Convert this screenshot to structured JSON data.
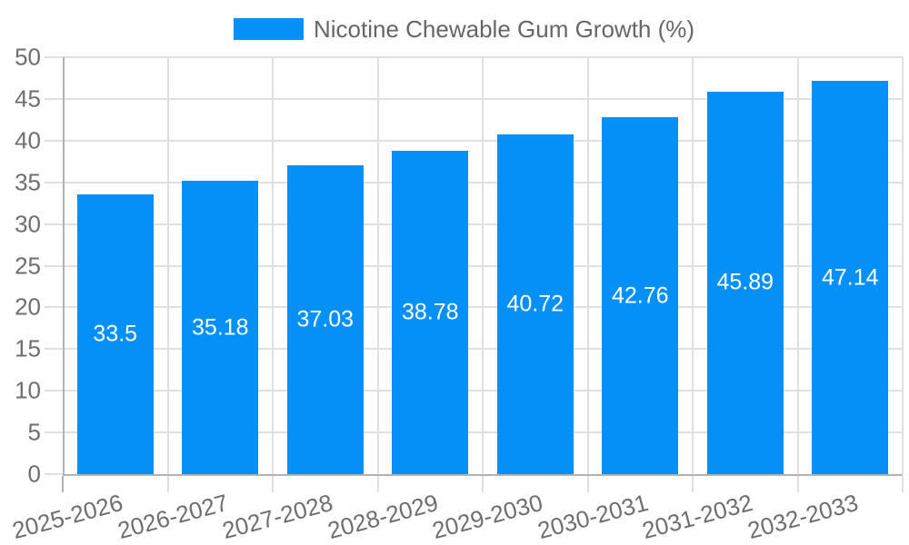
{
  "chart_data": {
    "type": "bar",
    "title": "",
    "legend_position": "top",
    "categories": [
      "2025-2026",
      "2026-2027",
      "2027-2028",
      "2028-2029",
      "2029-2030",
      "2030-2031",
      "2031-2032",
      "2032-2033"
    ],
    "series": [
      {
        "name": "Nicotine Chewable Gum Growth (%)",
        "values": [
          33.5,
          35.18,
          37.03,
          38.78,
          40.72,
          42.76,
          45.89,
          47.14
        ],
        "value_labels": [
          "33.5",
          "35.18",
          "37.03",
          "38.78",
          "40.72",
          "42.76",
          "45.89",
          "47.14"
        ],
        "color": "#0590f8"
      }
    ],
    "xlabel": "",
    "ylabel": "",
    "ylim": [
      0,
      50
    ],
    "yticks": [
      0,
      5,
      10,
      15,
      20,
      25,
      30,
      35,
      40,
      45,
      50
    ],
    "grid": true,
    "value_labels_inside_bars": true
  },
  "colors": {
    "bar": "#0590f8",
    "grid": "#e0e0e0",
    "axis": "#b2b2b2",
    "axis_label": "#6e6e6e",
    "legend_text": "#666666",
    "value_label": "#ffffff",
    "background": "#ffffff"
  }
}
